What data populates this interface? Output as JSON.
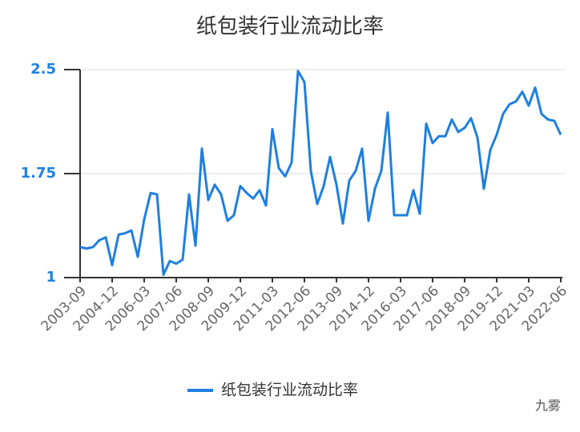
{
  "chart_data": {
    "type": "line",
    "title": "纸包装行业流动比率",
    "categories": [
      "2003-09",
      null,
      null,
      null,
      null,
      "2004-12",
      null,
      null,
      null,
      null,
      "2006-03",
      null,
      null,
      null,
      null,
      "2007-06",
      null,
      null,
      null,
      null,
      "2008-09",
      null,
      null,
      null,
      null,
      "2009-12",
      null,
      null,
      null,
      null,
      "2011-03",
      null,
      null,
      null,
      null,
      "2012-06",
      null,
      null,
      null,
      null,
      "2013-09",
      null,
      null,
      null,
      null,
      "2014-12",
      null,
      null,
      null,
      null,
      "2016-03",
      null,
      null,
      null,
      null,
      "2017-06",
      null,
      null,
      null,
      null,
      "2018-09",
      null,
      null,
      null,
      null,
      "2019-12",
      null,
      null,
      null,
      null,
      "2021-03",
      null,
      null,
      null,
      null,
      "2022-06"
    ],
    "series": [
      {
        "name": "纸包装行业流动比率",
        "color": "#1e7fe0",
        "values": [
          1.22,
          1.21,
          1.22,
          1.27,
          1.29,
          1.09,
          1.31,
          1.32,
          1.34,
          1.15,
          1.42,
          1.61,
          1.6,
          1.02,
          1.12,
          1.1,
          1.13,
          1.6,
          1.23,
          1.93,
          1.56,
          1.67,
          1.6,
          1.41,
          1.45,
          1.66,
          1.61,
          1.57,
          1.63,
          1.52,
          2.07,
          1.79,
          1.73,
          1.83,
          2.49,
          2.41,
          1.77,
          1.53,
          1.66,
          1.87,
          1.67,
          1.39,
          1.7,
          1.77,
          1.93,
          1.41,
          1.64,
          1.77,
          2.19,
          1.45,
          1.45,
          1.45,
          1.63,
          1.46,
          2.11,
          1.97,
          2.02,
          2.02,
          2.14,
          2.05,
          2.08,
          2.15,
          2.01,
          1.64,
          1.92,
          2.03,
          2.18,
          2.25,
          2.27,
          2.34,
          2.24,
          2.37,
          2.18,
          2.14,
          2.13,
          2.03
        ]
      }
    ],
    "ylim": [
      1,
      2.5
    ],
    "yticks": [
      1,
      1.75,
      2.5
    ],
    "grid": true,
    "legend": "bottom"
  },
  "watermark": "九雾"
}
